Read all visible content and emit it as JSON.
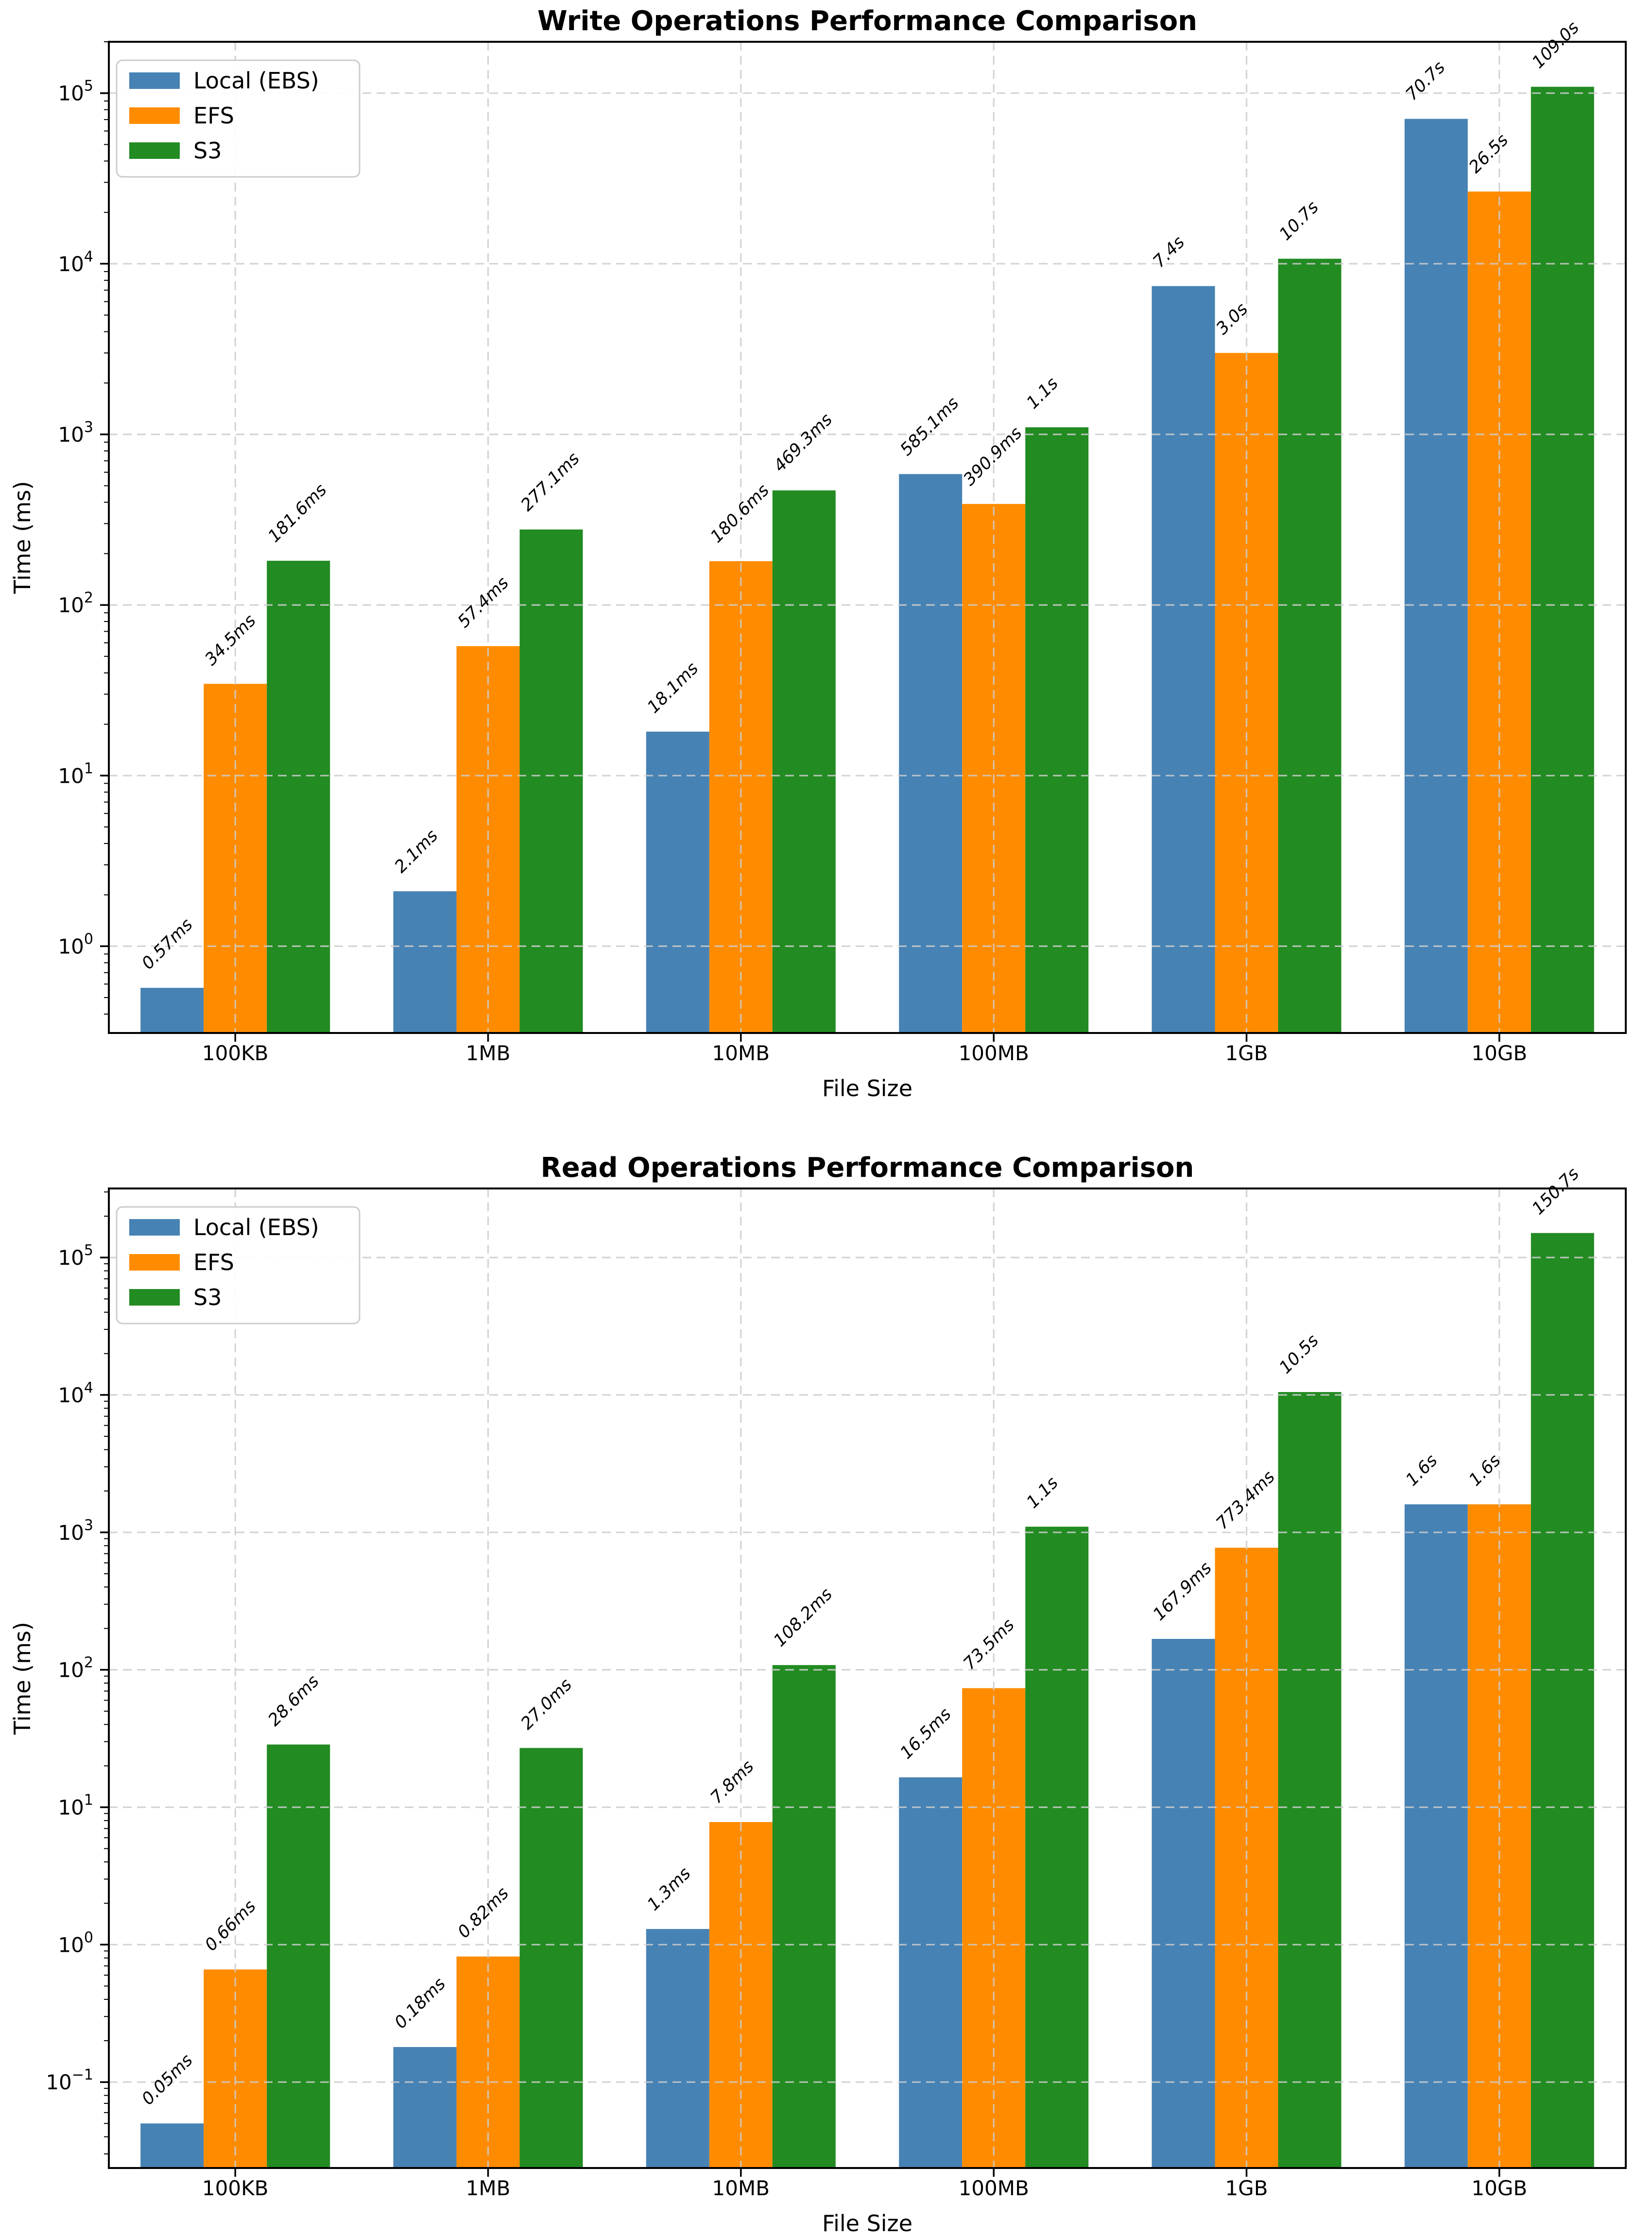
{
  "chart_data": [
    {
      "type": "bar",
      "title": "Write Operations Performance Comparison",
      "xlabel": "File Size",
      "ylabel": "Time (ms)",
      "yscale": "log",
      "ylim": [
        0.31,
        200000
      ],
      "ytick_exponents": [
        0,
        1,
        2,
        3,
        4,
        5
      ],
      "grid": true,
      "legend_position": "upper-left",
      "categories": [
        "100KB",
        "1MB",
        "10MB",
        "100MB",
        "1GB",
        "10GB"
      ],
      "series": [
        {
          "name": "Local (EBS)",
          "color": "#4682B4",
          "values": [
            0.57,
            2.1,
            18.1,
            585.1,
            7400,
            70700
          ],
          "labels": [
            "0.57ms",
            "2.1ms",
            "18.1ms",
            "585.1ms",
            "7.4s",
            "70.7s"
          ]
        },
        {
          "name": "EFS",
          "color": "#FF8C00",
          "values": [
            34.5,
            57.4,
            180.6,
            390.9,
            3000,
            26500
          ],
          "labels": [
            "34.5ms",
            "57.4ms",
            "180.6ms",
            "390.9ms",
            "3.0s",
            "26.5s"
          ]
        },
        {
          "name": "S3",
          "color": "#228B22",
          "values": [
            181.6,
            277.1,
            469.3,
            1100,
            10700,
            109000
          ],
          "labels": [
            "181.6ms",
            "277.1ms",
            "469.3ms",
            "1.1s",
            "10.7s",
            "109.0s"
          ]
        }
      ]
    },
    {
      "type": "bar",
      "title": "Read Operations Performance Comparison",
      "xlabel": "File Size",
      "ylabel": "Time (ms)",
      "yscale": "log",
      "ylim": [
        0.0237,
        318000
      ],
      "ytick_exponents": [
        -1,
        0,
        1,
        2,
        3,
        4,
        5
      ],
      "grid": true,
      "legend_position": "upper-left",
      "categories": [
        "100KB",
        "1MB",
        "10MB",
        "100MB",
        "1GB",
        "10GB"
      ],
      "series": [
        {
          "name": "Local (EBS)",
          "color": "#4682B4",
          "values": [
            0.05,
            0.18,
            1.3,
            16.5,
            167.9,
            1600
          ],
          "labels": [
            "0.05ms",
            "0.18ms",
            "1.3ms",
            "16.5ms",
            "167.9ms",
            "1.6s"
          ]
        },
        {
          "name": "EFS",
          "color": "#FF8C00",
          "values": [
            0.66,
            0.82,
            7.8,
            73.5,
            773.4,
            1600
          ],
          "labels": [
            "0.66ms",
            "0.82ms",
            "7.8ms",
            "73.5ms",
            "773.4ms",
            "1.6s"
          ]
        },
        {
          "name": "S3",
          "color": "#228B22",
          "values": [
            28.6,
            27.0,
            108.2,
            1100,
            10500,
            150700
          ],
          "labels": [
            "28.6ms",
            "27.0ms",
            "108.2ms",
            "1.1s",
            "10.5s",
            "150.7s"
          ]
        }
      ]
    }
  ]
}
